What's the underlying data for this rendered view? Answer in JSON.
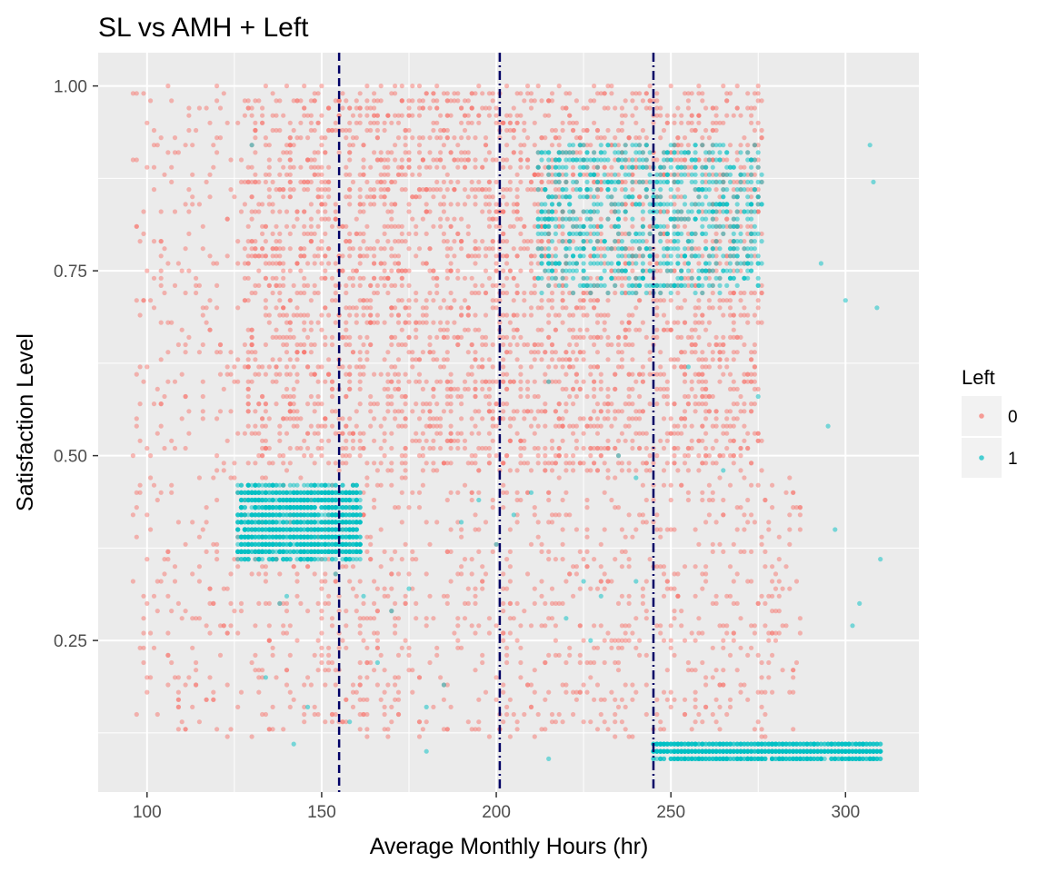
{
  "chart_data": {
    "type": "scatter",
    "title": "SL vs AMH + Left",
    "xlabel": "Average Monthly Hours (hr)",
    "ylabel": "Satisfaction Level",
    "xlim": [
      86,
      321
    ],
    "ylim": [
      0.045,
      1.045
    ],
    "x_ticks": [
      100,
      150,
      200,
      250,
      300
    ],
    "x_tick_labels": [
      "100",
      "150",
      "200",
      "250",
      "300"
    ],
    "y_ticks": [
      0.25,
      0.5,
      0.75,
      1.0
    ],
    "y_tick_labels": [
      "0.25",
      "0.50",
      "0.75",
      "1.00"
    ],
    "grid": true,
    "legend": {
      "title": "Left",
      "placement": "right",
      "entries": [
        {
          "label": "0",
          "color": "#F8766D"
        },
        {
          "label": "1",
          "color": "#00BFC4"
        }
      ]
    },
    "vlines": [
      {
        "x": 155,
        "color": "#000066",
        "style": "dashed"
      },
      {
        "x": 201,
        "color": "#000066",
        "style": "dash-dot"
      },
      {
        "x": 245,
        "color": "#000066",
        "style": "dash-dot"
      }
    ],
    "series": [
      {
        "name": "0",
        "color": "#F8766D",
        "opacity": 0.5,
        "x": [
          96,
          97,
          98,
          99,
          100,
          101,
          102,
          103,
          104,
          105,
          106,
          107,
          108,
          109,
          110,
          112,
          114,
          116,
          118,
          120,
          122,
          124,
          126,
          128,
          96,
          98,
          100,
          102,
          104,
          106,
          108,
          110,
          112,
          115,
          118,
          121,
          124,
          127,
          97,
          99,
          101,
          103,
          105,
          107,
          109,
          111,
          113,
          116,
          119,
          122,
          125,
          128,
          98,
          100,
          102,
          104,
          106,
          108,
          110,
          112,
          114,
          117,
          120,
          123,
          126,
          100,
          103,
          106,
          109,
          112,
          115,
          118,
          121,
          124,
          127,
          130,
          133,
          136,
          140,
          145,
          150,
          155,
          160,
          165,
          170,
          175,
          180,
          185,
          190,
          195,
          200,
          205,
          210,
          215,
          220,
          225,
          230,
          235,
          240,
          245,
          250,
          255,
          260,
          265,
          270,
          275,
          280,
          285
        ],
        "y": [
          0.99,
          0.15,
          0.79,
          0.83,
          0.62,
          0.4,
          0.74,
          0.29,
          0.54,
          0.72,
          0.91,
          0.45,
          0.33,
          0.18,
          0.67,
          0.86,
          0.21,
          0.58,
          0.77,
          0.13,
          0.48,
          0.64,
          0.39,
          0.42,
          0.5,
          0.69,
          0.95,
          0.24,
          0.83,
          0.36,
          0.6,
          0.14,
          0.75,
          0.47,
          0.88,
          0.27,
          0.56,
          0.43,
          0.81,
          0.22,
          0.71,
          0.92,
          0.34,
          0.52,
          0.17,
          0.65,
          0.41,
          0.78,
          0.3,
          0.59,
          0.85,
          0.44,
          0.46,
          0.89,
          0.31,
          0.63,
          0.19,
          0.73,
          0.55,
          0.97,
          0.28,
          0.68,
          0.37,
          0.82,
          0.6,
          0.2,
          0.44,
          0.76,
          0.16,
          0.53,
          0.84,
          0.32,
          0.61,
          0.47,
          0.9,
          0.12,
          0.35,
          0.23,
          0.19,
          0.15,
          0.22,
          0.26,
          0.18,
          0.3,
          0.14,
          0.21,
          0.27,
          0.17,
          0.24,
          0.13,
          0.2,
          0.28,
          0.16,
          0.23,
          0.19,
          0.25,
          0.15,
          0.21,
          0.18,
          0.13,
          0.27,
          0.22,
          0.16,
          0.24,
          0.19,
          0.14,
          0.26,
          0.21
        ],
        "clusters": [
          {
            "x_range": [
              128,
              276
            ],
            "y_range": [
              0.48,
              1.0
            ],
            "count": 3200,
            "step": 0.01
          },
          {
            "x_range": [
              130,
              287
            ],
            "y_range": [
              0.12,
              0.47
            ],
            "count": 900,
            "step": 0.01
          },
          {
            "x_range": [
              96,
              130
            ],
            "y_range": [
              0.12,
              1.0
            ],
            "count": 260,
            "step": 0.01
          }
        ]
      },
      {
        "name": "1",
        "color": "#00BFC4",
        "opacity": 0.5,
        "x": [
          130,
          134,
          138,
          142,
          146,
          150,
          154,
          158,
          162,
          166,
          170,
          175,
          180,
          185,
          190,
          195,
          200,
          205,
          210,
          215,
          220,
          225,
          230,
          235,
          240,
          293,
          295,
          297,
          300,
          302,
          304,
          307,
          308,
          309,
          310,
          140,
          160,
          180,
          215,
          227,
          240,
          255,
          265,
          275
        ],
        "y": [
          0.92,
          0.2,
          0.3,
          0.11,
          0.16,
          0.43,
          0.34,
          0.14,
          0.31,
          0.22,
          0.29,
          0.32,
          0.1,
          0.19,
          0.41,
          0.44,
          0.38,
          0.42,
          0.45,
          0.09,
          0.28,
          0.33,
          0.31,
          0.5,
          0.47,
          0.76,
          0.54,
          0.4,
          0.71,
          0.27,
          0.3,
          0.92,
          0.87,
          0.7,
          0.36,
          0.31,
          0.42,
          0.16,
          0.6,
          0.25,
          0.33,
          0.62,
          0.48,
          0.58
        ],
        "clusters": [
          {
            "x_range": [
              126,
              161
            ],
            "y_range": [
              0.36,
              0.46
            ],
            "count": 1550,
            "step": 0.01
          },
          {
            "x_range": [
              212,
              276
            ],
            "y_range": [
              0.72,
              0.92
            ],
            "count": 900,
            "step": 0.01
          },
          {
            "x_range": [
              245,
              310
            ],
            "y_range": [
              0.09,
              0.11
            ],
            "count": 1100,
            "step": 0.01
          }
        ]
      }
    ]
  }
}
